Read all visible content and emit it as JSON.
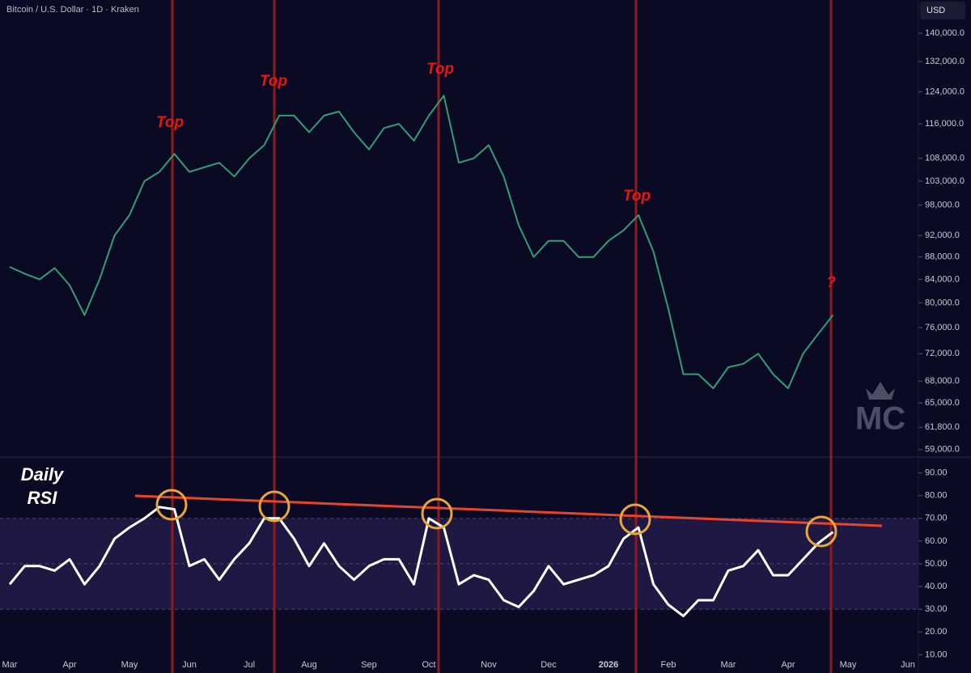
{
  "chart_data": [
    {
      "type": "line",
      "title": "Bitcoin / U.S. Dollar · 1D · Kraken",
      "currency": "USD",
      "log_scale": true,
      "ylim": [
        58100,
        150000
      ],
      "yticks": [
        {
          "value": 140000,
          "label": "140,000.0"
        },
        {
          "value": 132000,
          "label": "132,000.0"
        },
        {
          "value": 124000,
          "label": "124,000.0"
        },
        {
          "value": 116000,
          "label": "116,000.0"
        },
        {
          "value": 108000,
          "label": "108,000.0"
        },
        {
          "value": 103000,
          "label": "103,000.0"
        },
        {
          "value": 98000,
          "label": "98,000.0"
        },
        {
          "value": 92000,
          "label": "92,000.0"
        },
        {
          "value": 88000,
          "label": "88,000.0"
        },
        {
          "value": 84000,
          "label": "84,000.0"
        },
        {
          "value": 80000,
          "label": "80,000.0"
        },
        {
          "value": 76000,
          "label": "76,000.0"
        },
        {
          "value": 72000,
          "label": "72,000.0"
        },
        {
          "value": 68000,
          "label": "68,000.0"
        },
        {
          "value": 65000,
          "label": "65,000.0"
        },
        {
          "value": 61800,
          "label": "61,800.0"
        },
        {
          "value": 59000,
          "label": "59,000.0"
        }
      ],
      "series": [
        {
          "color": "#2f9f72",
          "values": [
            86200,
            85000,
            84000,
            86000,
            83000,
            78000,
            84000,
            92000,
            96000,
            103000,
            105000,
            109000,
            105000,
            106000,
            107000,
            104000,
            108000,
            111000,
            118000,
            118000,
            114000,
            118000,
            119000,
            114000,
            110000,
            115000,
            116000,
            112000,
            118000,
            123000,
            107000,
            108000,
            111000,
            104000,
            94000,
            88000,
            91000,
            91000,
            88000,
            88000,
            91000,
            93000,
            96000,
            89000,
            79000,
            69000,
            69000,
            67000,
            70000,
            70500,
            72000,
            69000,
            67000,
            72000,
            75000,
            78000,
            null,
            null,
            null,
            null,
            null
          ]
        }
      ],
      "annotations": [
        "Top",
        "Top",
        "Top",
        "Top",
        "?"
      ],
      "watermark": "MC"
    },
    {
      "type": "line",
      "label_lines": [
        "Daily",
        "RSI"
      ],
      "ylim": [
        8,
        97
      ],
      "yticks": [
        {
          "value": 90,
          "label": "90.00"
        },
        {
          "value": 80,
          "label": "80.00"
        },
        {
          "value": 70,
          "label": "70.00"
        },
        {
          "value": 60,
          "label": "60.00"
        },
        {
          "value": 50,
          "label": "50.00"
        },
        {
          "value": 40,
          "label": "40.00"
        },
        {
          "value": 30,
          "label": "30.00"
        },
        {
          "value": 20,
          "label": "20.00"
        },
        {
          "value": 10,
          "label": "10.00"
        }
      ],
      "band": [
        30,
        70
      ],
      "midline": 50,
      "categories": [
        "Mar",
        null,
        null,
        null,
        "Apr",
        null,
        null,
        null,
        "May",
        null,
        null,
        null,
        "Jun",
        null,
        null,
        null,
        "Jul",
        null,
        null,
        null,
        "Aug",
        null,
        null,
        null,
        "Sep",
        null,
        null,
        null,
        "Oct",
        null,
        null,
        null,
        "Nov",
        null,
        null,
        null,
        "Dec",
        null,
        null,
        null,
        "2026",
        null,
        null,
        null,
        "Feb",
        null,
        null,
        null,
        "Mar",
        null,
        null,
        null,
        "Apr",
        null,
        null,
        null,
        "May",
        null,
        null,
        null,
        "Jun"
      ],
      "series": [
        {
          "color": "#ffffff",
          "values": [
            41,
            49,
            49,
            47,
            52,
            41,
            49,
            61,
            66,
            70,
            75,
            74,
            49,
            52,
            43,
            52,
            59,
            70,
            70,
            61,
            49,
            59,
            49,
            43,
            49,
            52,
            52,
            41,
            70,
            66,
            41,
            45,
            43,
            34,
            31,
            38,
            49,
            41,
            43,
            45,
            49,
            61,
            66,
            41,
            32,
            27,
            34,
            34,
            47,
            49,
            56,
            45,
            45,
            52,
            59,
            64,
            null,
            null,
            null,
            null,
            null
          ]
        }
      ]
    }
  ]
}
